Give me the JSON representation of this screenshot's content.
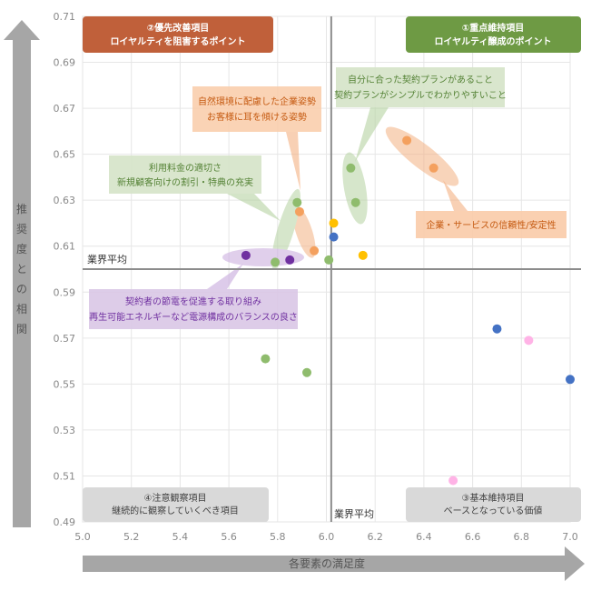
{
  "chart_data": {
    "type": "scatter",
    "title": "",
    "xlabel": "各要素の満足度",
    "ylabel": "推奨度との相関",
    "xlim": [
      5.0,
      7.0
    ],
    "ylim": [
      0.49,
      0.71
    ],
    "x_ticks": [
      "5.0",
      "5.2",
      "5.4",
      "5.6",
      "5.8",
      "6.0",
      "6.2",
      "6.4",
      "6.6",
      "6.8",
      "7.0"
    ],
    "y_ticks": [
      "0.71",
      "0.69",
      "0.67",
      "0.65",
      "0.63",
      "0.61",
      "0.59",
      "0.57",
      "0.55",
      "0.53",
      "0.51",
      "0.49"
    ],
    "x_tick_values": [
      5.0,
      5.2,
      5.4,
      5.6,
      5.8,
      6.0,
      6.2,
      6.4,
      6.6,
      6.8,
      7.0
    ],
    "y_tick_values": [
      0.71,
      0.69,
      0.67,
      0.65,
      0.63,
      0.61,
      0.59,
      0.57,
      0.55,
      0.53,
      0.51,
      0.49
    ],
    "grid": true,
    "industry_average": {
      "x": 6.02,
      "y": 0.6,
      "x_label": "業界平均",
      "y_label": "業界平均"
    },
    "series": [
      {
        "color": "#4472c4",
        "points": [
          {
            "x": 6.03,
            "y": 0.614
          },
          {
            "x": 6.7,
            "y": 0.574
          },
          {
            "x": 7.0,
            "y": 0.552
          }
        ]
      },
      {
        "color": "#ffc000",
        "points": [
          {
            "x": 6.03,
            "y": 0.62
          },
          {
            "x": 6.15,
            "y": 0.606
          }
        ]
      },
      {
        "color": "#f4a05e",
        "points": [
          {
            "x": 6.33,
            "y": 0.656
          },
          {
            "x": 6.44,
            "y": 0.644
          },
          {
            "x": 5.89,
            "y": 0.625
          },
          {
            "x": 5.95,
            "y": 0.608
          }
        ]
      },
      {
        "color": "#8fbc6d",
        "points": [
          {
            "x": 6.1,
            "y": 0.644
          },
          {
            "x": 6.12,
            "y": 0.629
          },
          {
            "x": 5.88,
            "y": 0.629
          },
          {
            "x": 5.79,
            "y": 0.603
          },
          {
            "x": 6.01,
            "y": 0.604
          },
          {
            "x": 5.75,
            "y": 0.561
          },
          {
            "x": 5.92,
            "y": 0.555
          }
        ]
      },
      {
        "color": "#7030a0",
        "points": [
          {
            "x": 5.67,
            "y": 0.606
          },
          {
            "x": 5.85,
            "y": 0.604
          }
        ]
      },
      {
        "color": "#ffb3e6",
        "points": [
          {
            "x": 6.83,
            "y": 0.569
          },
          {
            "x": 6.52,
            "y": 0.508
          }
        ]
      }
    ],
    "quadrants": [
      {
        "title": "②優先改善項目",
        "subtitle": "ロイヤルティを阻害するポイント",
        "bg": "#c0603a",
        "fg": "#ffffff"
      },
      {
        "title": "①重点維持項目",
        "subtitle": "ロイヤルティ醸成のポイント",
        "bg": "#6e9a44",
        "fg": "#ffffff"
      },
      {
        "title": "④注意観察項目",
        "subtitle": "継続的に観察していくべき項目",
        "bg": "#d9d9d9",
        "fg": "#404040"
      },
      {
        "title": "③基本維持項目",
        "subtitle": "ベースとなっている価値",
        "bg": "#d9d9d9",
        "fg": "#404040"
      }
    ],
    "annotations": [
      {
        "lines": [
          "自然環境に配慮した企業姿勢",
          "お客様に耳を傾ける姿勢"
        ],
        "bg": "#f9cba8",
        "fg": "#c55a11"
      },
      {
        "lines": [
          "自分に合った契約プランがあること",
          "契約プランがシンプルでわかりやすいこと"
        ],
        "bg": "#d5e3c8",
        "fg": "#548235"
      },
      {
        "lines": [
          "利用料金の適切さ",
          "新規顧客向けの割引・特典の充実"
        ],
        "bg": "#d5e3c8",
        "fg": "#548235"
      },
      {
        "lines": [
          "企業・サービスの信頼性/安定性"
        ],
        "bg": "#f9cba8",
        "fg": "#c55a11"
      },
      {
        "lines": [
          "契約者の節電を促進する取り組み",
          "再生可能エネルギーなど電源構成のバランスの良さ"
        ],
        "bg": "#d9c6e6",
        "fg": "#7030a0"
      }
    ]
  }
}
